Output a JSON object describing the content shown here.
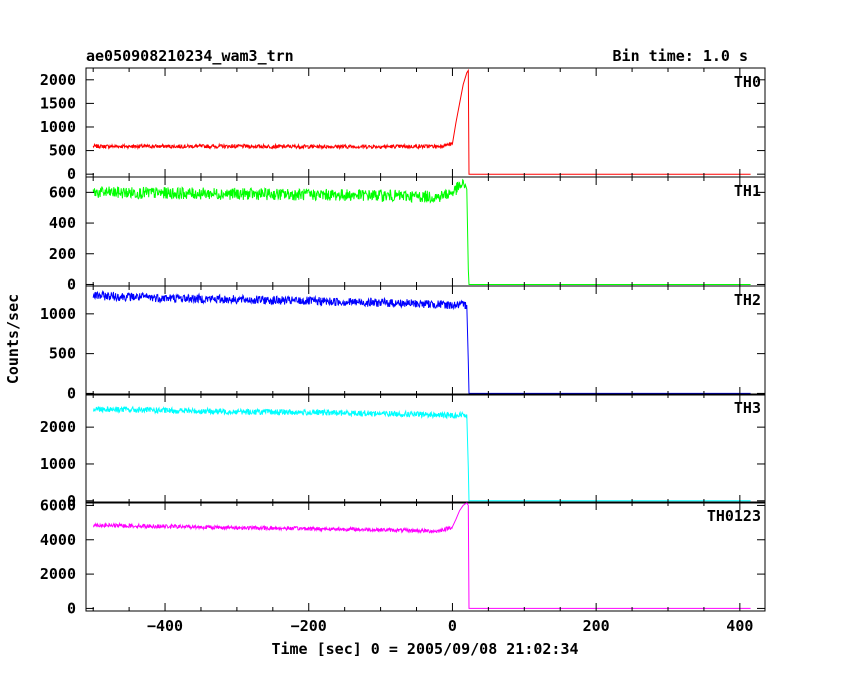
{
  "chart_data": {
    "type": "line",
    "title": "ae050908210234_wam3_trn",
    "subtitle": "Bin time: 1.0 s",
    "xlabel": "Time [sec] 0 = 2005/09/08 21:02:34",
    "ylabel": "Counts/sec",
    "xlim": [
      -510,
      435
    ],
    "x_ticks": [
      "−400",
      "−200",
      "0",
      "200",
      "400"
    ],
    "x_tick_values": [
      -400,
      -200,
      0,
      200,
      400
    ],
    "grid": false,
    "panels": [
      {
        "name": "TH0",
        "color": "#ff0000",
        "ylim": [
          -60,
          2250
        ],
        "y_ticks": [
          "0",
          "500",
          "1000",
          "1500",
          "2000"
        ],
        "y_tick_values": [
          0,
          500,
          1000,
          1500,
          2000
        ],
        "x": [
          -500,
          -400,
          -300,
          -200,
          -100,
          -20,
          0,
          5,
          10,
          15,
          20,
          22,
          23,
          100,
          200,
          300,
          415
        ],
        "values": [
          590,
          590,
          590,
          585,
          585,
          590,
          640,
          1100,
          1500,
          1900,
          2150,
          2200,
          0,
          0,
          0,
          0,
          0
        ]
      },
      {
        "name": "TH1",
        "color": "#00ff00",
        "ylim": [
          -10,
          700
        ],
        "y_ticks": [
          "0",
          "200",
          "400",
          "600"
        ],
        "y_tick_values": [
          0,
          200,
          400,
          600
        ],
        "x": [
          -500,
          -400,
          -300,
          -200,
          -100,
          -20,
          0,
          10,
          18,
          20,
          22,
          23,
          100,
          200,
          300,
          415
        ],
        "values": [
          600,
          595,
          590,
          585,
          580,
          570,
          600,
          640,
          650,
          620,
          100,
          0,
          0,
          0,
          0,
          0
        ]
      },
      {
        "name": "TH2",
        "color": "#0000ff",
        "ylim": [
          -20,
          1350
        ],
        "y_ticks": [
          "0",
          "500",
          "1000"
        ],
        "y_tick_values": [
          0,
          500,
          1000
        ],
        "x": [
          -500,
          -400,
          -300,
          -200,
          -100,
          -20,
          0,
          10,
          20,
          22,
          23,
          100,
          200,
          300,
          415
        ],
        "values": [
          1230,
          1200,
          1180,
          1160,
          1140,
          1120,
          1110,
          1110,
          1110,
          400,
          0,
          0,
          0,
          0,
          0
        ]
      },
      {
        "name": "TH3",
        "color": "#00ffff",
        "ylim": [
          -60,
          2900
        ],
        "y_ticks": [
          "0",
          "1000",
          "2000"
        ],
        "y_tick_values": [
          0,
          1000,
          2000
        ],
        "x": [
          -500,
          -400,
          -300,
          -200,
          -100,
          -20,
          0,
          10,
          20,
          22,
          23,
          100,
          200,
          300,
          415
        ],
        "values": [
          2500,
          2450,
          2420,
          2400,
          2370,
          2330,
          2320,
          2330,
          2330,
          900,
          0,
          0,
          0,
          0,
          0
        ]
      },
      {
        "name": "TH0123",
        "color": "#ff00ff",
        "ylim": [
          -150,
          6200
        ],
        "y_ticks": [
          "0",
          "2000",
          "4000",
          "6000"
        ],
        "y_tick_values": [
          0,
          2000,
          4000,
          6000
        ],
        "x": [
          -500,
          -400,
          -300,
          -200,
          -100,
          -20,
          0,
          5,
          10,
          15,
          20,
          22,
          23,
          100,
          200,
          300,
          415
        ],
        "values": [
          4850,
          4780,
          4700,
          4650,
          4580,
          4500,
          4750,
          5200,
          5700,
          6000,
          6150,
          6000,
          0,
          0,
          0,
          0,
          0
        ]
      }
    ]
  }
}
